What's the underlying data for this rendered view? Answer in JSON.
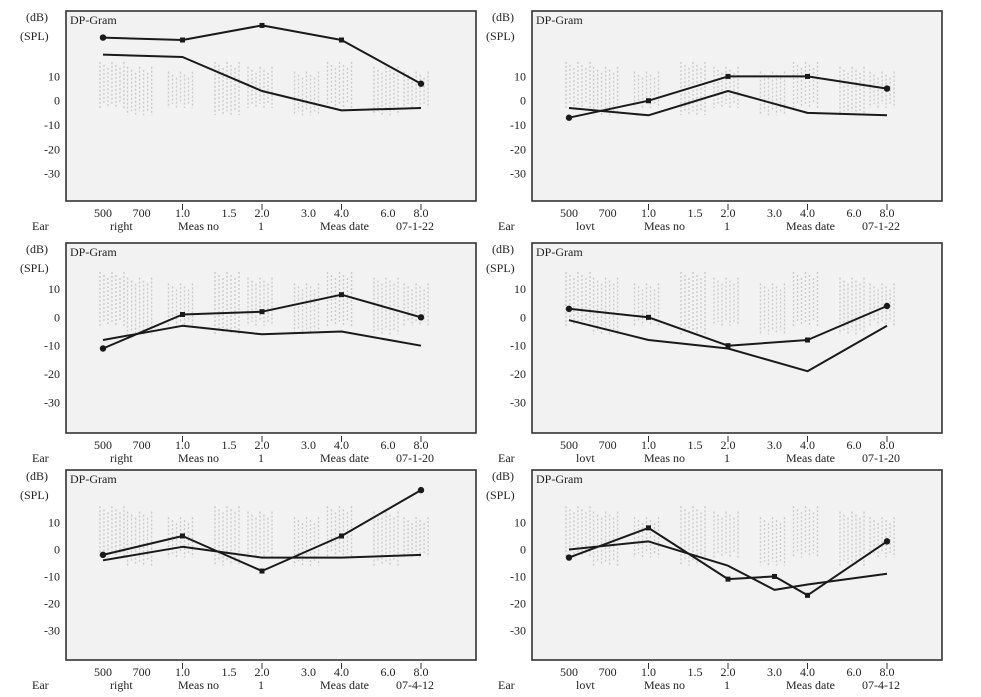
{
  "units_line1": "(dB)",
  "units_line2": "(SPL)",
  "ear_label": "Ear",
  "meas_no_label": "Meas no",
  "meas_date_label": "Meas date",
  "y_tick_labels": [
    "10",
    "0",
    "-10",
    "-20",
    "-30"
  ],
  "x_tick_labels": [
    "500",
    "700",
    "1.0",
    "1.5",
    "2.0",
    "3.0",
    "4.0",
    "6.0",
    "8.0"
  ],
  "colors": {
    "line": "#1a1a1a",
    "frame": "#333333",
    "band": "#9a9a9a",
    "plot_bg": "#f2f2f2"
  },
  "chart_data": [
    {
      "type": "line",
      "title": "DP-Gram",
      "ear": "right",
      "meas_no": "1",
      "meas_date": "07-1-22",
      "x_scale": "log",
      "x_unit": "kHz",
      "ylim": [
        -38,
        32
      ],
      "series": [
        {
          "marker": true,
          "x": [
            0.5,
            1.0,
            2.0,
            4.0,
            8.0
          ],
          "y": [
            26,
            25,
            31,
            25,
            7
          ]
        },
        {
          "marker": false,
          "x": [
            0.5,
            1.0,
            2.0,
            4.0,
            8.0
          ],
          "y": [
            19,
            18,
            4,
            -4,
            -3
          ]
        }
      ]
    },
    {
      "type": "line",
      "title": "DP-Gram",
      "ear": "lovt",
      "meas_no": "1",
      "meas_date": "07-1-22",
      "x_scale": "log",
      "x_unit": "kHz",
      "ylim": [
        -38,
        32
      ],
      "series": [
        {
          "marker": true,
          "x": [
            0.5,
            1.0,
            2.0,
            4.0,
            8.0
          ],
          "y": [
            -7,
            0,
            10,
            10,
            5
          ]
        },
        {
          "marker": false,
          "x": [
            0.5,
            1.0,
            2.0,
            4.0,
            8.0
          ],
          "y": [
            -3,
            -6,
            4,
            -5,
            -6
          ]
        }
      ]
    },
    {
      "type": "line",
      "title": "DP-Gram",
      "ear": "right",
      "meas_no": "1",
      "meas_date": "07-1-20",
      "x_scale": "log",
      "x_unit": "kHz",
      "ylim": [
        -38,
        22
      ],
      "series": [
        {
          "marker": true,
          "x": [
            0.5,
            1.0,
            2.0,
            4.0,
            8.0
          ],
          "y": [
            -11,
            1,
            2,
            8,
            0
          ]
        },
        {
          "marker": false,
          "x": [
            0.5,
            1.0,
            2.0,
            4.0,
            8.0
          ],
          "y": [
            -8,
            -3,
            -6,
            -5,
            -10
          ]
        }
      ]
    },
    {
      "type": "line",
      "title": "DP-Gram",
      "ear": "lovt",
      "meas_no": "1",
      "meas_date": "07-1-20",
      "x_scale": "log",
      "x_unit": "kHz",
      "ylim": [
        -38,
        22
      ],
      "series": [
        {
          "marker": true,
          "x": [
            0.5,
            1.0,
            2.0,
            4.0,
            8.0
          ],
          "y": [
            3,
            0,
            -10,
            -8,
            4
          ]
        },
        {
          "marker": false,
          "x": [
            0.5,
            1.0,
            2.0,
            4.0,
            8.0
          ],
          "y": [
            -1,
            -8,
            -11,
            -19,
            -3
          ]
        }
      ]
    },
    {
      "type": "line",
      "title": "DP-Gram",
      "ear": "right",
      "meas_no": "1",
      "meas_date": "07-4-12",
      "x_scale": "log",
      "x_unit": "kHz",
      "ylim": [
        -38,
        25
      ],
      "series": [
        {
          "marker": true,
          "x": [
            0.5,
            1.0,
            2.0,
            4.0,
            8.0
          ],
          "y": [
            -2,
            5,
            -8,
            5,
            22
          ]
        },
        {
          "marker": false,
          "x": [
            0.5,
            1.0,
            2.0,
            4.0,
            8.0
          ],
          "y": [
            -4,
            1,
            -3,
            -3,
            -2
          ]
        }
      ]
    },
    {
      "type": "line",
      "title": "DP-Gram",
      "ear": "lovt",
      "meas_no": "1",
      "meas_date": "07-4-12",
      "x_scale": "log",
      "x_unit": "kHz",
      "ylim": [
        -38,
        25
      ],
      "series": [
        {
          "marker": true,
          "x": [
            0.5,
            1.0,
            2.0,
            3.0,
            4.0,
            8.0
          ],
          "y": [
            -3,
            8,
            -11,
            -10,
            -17,
            3
          ]
        },
        {
          "marker": false,
          "x": [
            0.5,
            1.0,
            2.0,
            3.0,
            4.0,
            8.0
          ],
          "y": [
            0,
            3,
            -6,
            -15,
            -13,
            -9
          ]
        }
      ]
    }
  ]
}
